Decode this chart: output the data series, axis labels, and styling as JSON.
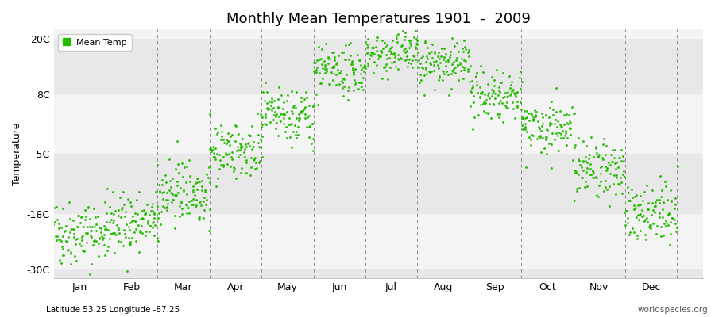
{
  "title": "Monthly Mean Temperatures 1901  -  2009",
  "ylabel": "Temperature",
  "xlabel_bottom_left": "Latitude 53.25 Longitude -87.25",
  "xlabel_bottom_right": "worldspecies.org",
  "ytick_labels": [
    "20C",
    "8C",
    "-5C",
    "-18C",
    "-30C"
  ],
  "ytick_values": [
    20,
    8,
    -5,
    -18,
    -30
  ],
  "ylim": [
    -32,
    22
  ],
  "month_labels": [
    "Jan",
    "Feb",
    "Mar",
    "Apr",
    "May",
    "Jun",
    "Jul",
    "Aug",
    "Sep",
    "Oct",
    "Nov",
    "Dec"
  ],
  "dot_color": "#22BB00",
  "bg_color_dark": "#E8E8E8",
  "bg_color_light": "#F4F4F4",
  "grid_color": "#888888",
  "legend_label": "Mean Temp",
  "num_years": 109,
  "monthly_mean_temps": [
    -22,
    -20,
    -13,
    -4,
    3,
    13,
    17,
    15,
    8,
    1,
    -8,
    -18
  ],
  "monthly_std_temps": [
    3.5,
    3.2,
    3.5,
    3.0,
    3.0,
    2.5,
    2.2,
    2.5,
    2.8,
    3.0,
    3.2,
    3.5
  ],
  "seed": 42,
  "dot_size": 4
}
